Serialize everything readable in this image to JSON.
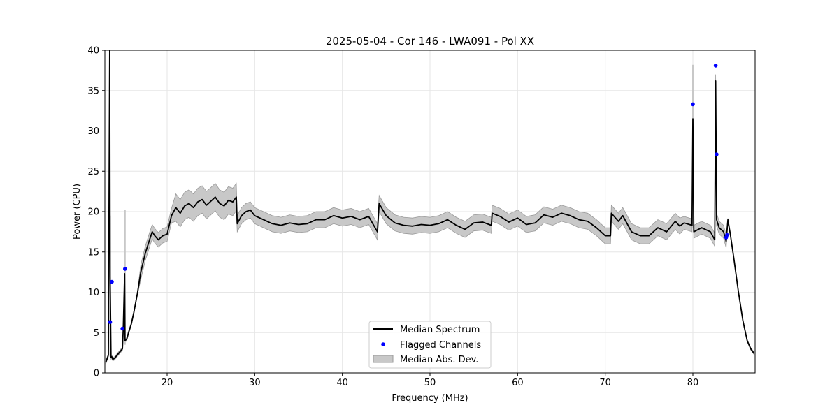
{
  "chart_data": {
    "type": "line",
    "title": "2025-05-04 - Cor 146 - LWA091 - Pol XX",
    "xlabel": "Frequency (MHz)",
    "ylabel": "Power (CPU)",
    "xlim": [
      12.9,
      87.1
    ],
    "ylim": [
      0,
      40
    ],
    "xticks": [
      20,
      30,
      40,
      50,
      60,
      70,
      80
    ],
    "yticks": [
      0,
      5,
      10,
      15,
      20,
      25,
      30,
      35,
      40
    ],
    "grid": true,
    "legend": {
      "placement": "lower center",
      "entries": [
        {
          "label": "Median Spectrum",
          "marker": "line",
          "color": "#000000"
        },
        {
          "label": "Flagged Channels",
          "marker": "dot",
          "color": "#0000ff"
        },
        {
          "label": "Median Abs. Dev.",
          "marker": "patch",
          "color": "#c8c8c8"
        }
      ]
    },
    "series": [
      {
        "name": "Median Spectrum",
        "color": "#000000",
        "x": [
          13.0,
          13.3,
          13.45,
          13.5,
          13.6,
          13.7,
          13.8,
          14.0,
          14.3,
          14.6,
          14.9,
          15.0,
          15.15,
          15.2,
          15.4,
          15.6,
          15.9,
          16.2,
          16.6,
          17.0,
          17.5,
          18.0,
          18.3,
          18.6,
          19.0,
          19.5,
          20.0,
          20.5,
          21.0,
          21.5,
          22.0,
          22.5,
          23.0,
          23.5,
          24.0,
          24.5,
          25.0,
          25.5,
          26.0,
          26.5,
          27.0,
          27.5,
          27.9,
          28.0,
          28.5,
          29.0,
          29.5,
          30.0,
          31.0,
          32.0,
          33.0,
          34.0,
          35.0,
          36.0,
          37.0,
          38.0,
          39.0,
          40.0,
          41.0,
          42.0,
          43.0,
          44.0,
          44.2,
          44.3,
          45.0,
          46.0,
          47.0,
          48.0,
          49.0,
          50.0,
          51.0,
          52.0,
          53.0,
          54.0,
          55.0,
          56.0,
          57.0,
          57.1,
          58.0,
          59.0,
          60.0,
          61.0,
          62.0,
          63.0,
          64.0,
          65.0,
          66.0,
          67.0,
          68.0,
          69.0,
          70.0,
          70.6,
          70.7,
          71.5,
          72.0,
          73.0,
          74.0,
          75.0,
          76.0,
          77.0,
          78.0,
          78.5,
          79.0,
          79.9,
          80.0,
          80.1,
          81.0,
          82.0,
          82.5,
          82.6,
          82.7,
          83.0,
          83.5,
          83.8,
          84.0,
          84.3,
          84.7,
          85.2,
          85.7,
          86.2,
          86.6,
          87.0
        ],
        "values": [
          1.3,
          2.2,
          40.0,
          12.0,
          1.9,
          2.0,
          1.7,
          1.8,
          2.2,
          2.6,
          3.0,
          5.5,
          12.3,
          4.0,
          4.2,
          5.0,
          6.0,
          7.5,
          9.8,
          12.5,
          14.8,
          16.5,
          17.5,
          17.0,
          16.5,
          17.0,
          17.2,
          19.5,
          20.5,
          19.8,
          20.7,
          21.0,
          20.5,
          21.2,
          21.5,
          20.8,
          21.3,
          21.8,
          21.0,
          20.7,
          21.4,
          21.2,
          21.8,
          18.5,
          19.5,
          20.0,
          20.2,
          19.5,
          19.0,
          18.5,
          18.3,
          18.6,
          18.4,
          18.5,
          19.0,
          19.0,
          19.5,
          19.2,
          19.4,
          19.0,
          19.4,
          17.5,
          21.0,
          20.8,
          19.5,
          18.6,
          18.3,
          18.2,
          18.4,
          18.3,
          18.5,
          19.0,
          18.3,
          17.8,
          18.6,
          18.7,
          18.3,
          19.8,
          19.4,
          18.7,
          19.2,
          18.4,
          18.6,
          19.6,
          19.3,
          19.8,
          19.5,
          19.0,
          18.8,
          18.0,
          17.0,
          17.0,
          19.8,
          18.8,
          19.5,
          17.5,
          17.0,
          17.0,
          18.0,
          17.5,
          18.8,
          18.2,
          18.6,
          18.3,
          31.5,
          17.5,
          18.0,
          17.5,
          16.5,
          36.2,
          19.0,
          18.0,
          17.5,
          16.3,
          19.0,
          17.0,
          14.0,
          10.0,
          6.5,
          4.0,
          3.0,
          2.4
        ]
      }
    ],
    "band": {
      "name": "Median Abs. Dev.",
      "color": "#c8c8c8",
      "edge_color": "#9a9a9a",
      "half_width": [
        {
          "from": 12.9,
          "to": 17.0,
          "value": 0.2
        },
        {
          "from": 17.0,
          "to": 21.0,
          "value": 0.9
        },
        {
          "from": 21.0,
          "to": 28.0,
          "value": 1.7
        },
        {
          "from": 28.0,
          "to": 45.0,
          "value": 1.0
        },
        {
          "from": 45.0,
          "to": 79.0,
          "value": 1.0
        },
        {
          "from": 79.0,
          "to": 84.0,
          "value": 0.8
        },
        {
          "from": 84.0,
          "to": 87.1,
          "value": 0.15
        }
      ],
      "spikes": [
        {
          "x": 13.5,
          "low": 2.0,
          "high": 19.5
        },
        {
          "x": 15.2,
          "low": 3.5,
          "high": 20.2
        },
        {
          "x": 80.0,
          "low": 18.0,
          "high": 38.2
        }
      ]
    },
    "flagged_channels": {
      "name": "Flagged Channels",
      "color": "#0000ff",
      "x": [
        13.5,
        13.7,
        14.9,
        15.2,
        80.0,
        82.6,
        82.7,
        83.8,
        83.9
      ],
      "y": [
        6.3,
        11.3,
        5.5,
        12.9,
        33.3,
        38.1,
        27.1,
        16.8,
        17.1
      ]
    }
  }
}
